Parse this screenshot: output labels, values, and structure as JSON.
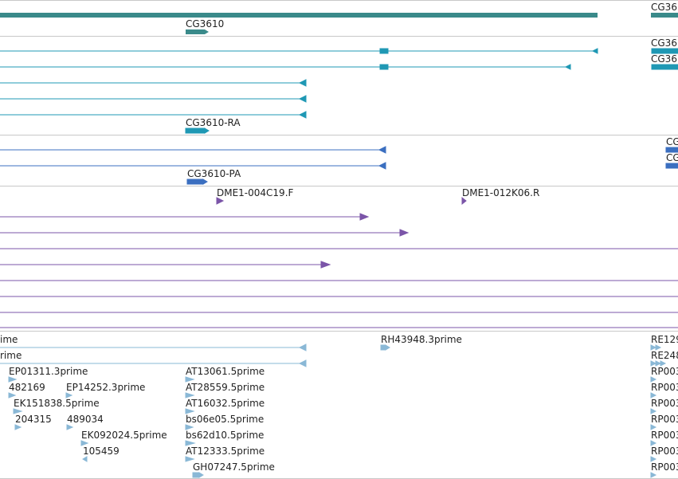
{
  "view": {
    "sections": [
      {
        "id": "gene",
        "color": "#3a8a8a",
        "labels": [
          "CG36",
          "CG3610"
        ]
      },
      {
        "id": "transcripts-teal",
        "color": "#1f98b4",
        "labels": [
          "CG36",
          "CG36",
          "CG3610-RA"
        ]
      },
      {
        "id": "transcripts-blue",
        "color": "#3b6fc0",
        "labels": [
          "CG",
          "CG",
          "CG3610-PA"
        ]
      },
      {
        "id": "ests-purple",
        "color": "#7b55a8",
        "labels": [
          "DME1-004C19.F",
          "DME1-012K06.R"
        ]
      },
      {
        "id": "ests-lightblue",
        "color": "#8ab8d6",
        "labels": [
          "ime",
          "RH43948.3prime",
          "RE129",
          "rime",
          "RE248",
          "EP01311.3prime",
          "AT13061.5prime",
          "RP003",
          "482169",
          "EP14252.3prime",
          "AT28559.5prime",
          "RP003",
          "EK151838.5prime",
          "AT16032.5prime",
          "RP003",
          "204315",
          "489034",
          "bs06e05.5prime",
          "RP003",
          "EK092024.5prime",
          "bs62d10.5prime",
          "RP003",
          "105459",
          "AT12333.5prime",
          "RP003",
          "GH07247.5prime",
          "RP003"
        ]
      }
    ]
  }
}
